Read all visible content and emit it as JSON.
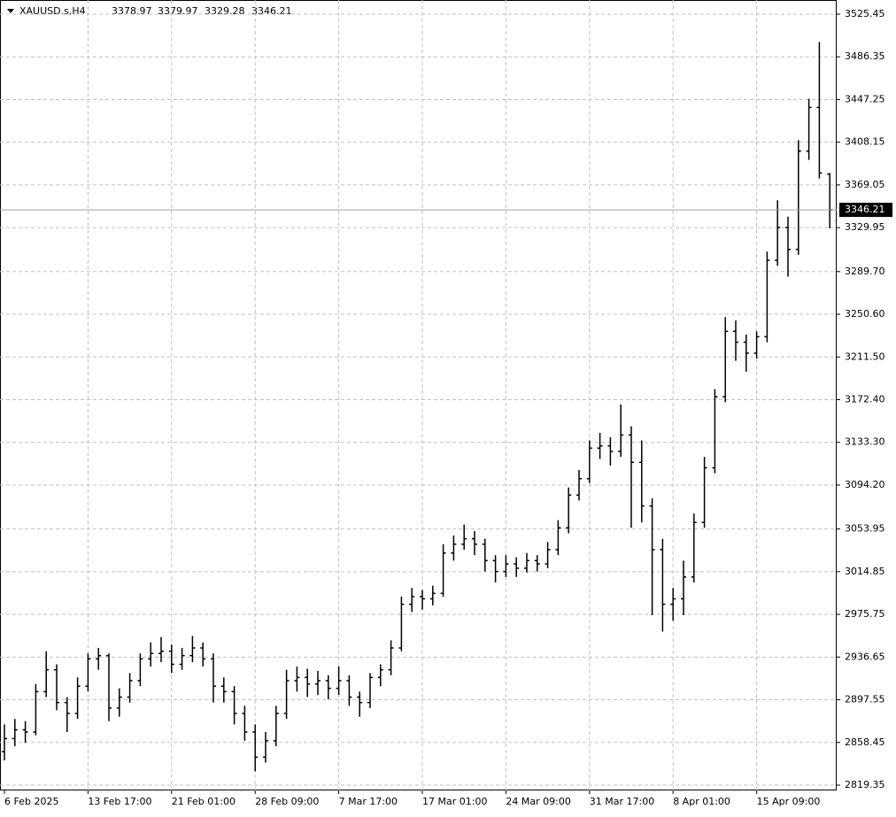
{
  "chart_data": {
    "type": "ohlc",
    "symbol": "XAUUSD.s,H4",
    "color": "#000000",
    "grid": true,
    "categories": [
      "6 Feb 2025",
      null,
      null,
      null,
      null,
      null,
      null,
      null,
      "13 Feb 17:00",
      null,
      null,
      null,
      null,
      null,
      null,
      null,
      "21 Feb 01:00",
      null,
      null,
      null,
      null,
      null,
      null,
      null,
      "28 Feb 09:00",
      null,
      null,
      null,
      null,
      null,
      null,
      null,
      "7 Mar 17:00",
      null,
      null,
      null,
      null,
      null,
      null,
      null,
      "17 Mar 01:00",
      null,
      null,
      null,
      null,
      null,
      null,
      null,
      "24 Mar 09:00",
      null,
      null,
      null,
      null,
      null,
      null,
      null,
      "31 Mar 17:00",
      null,
      null,
      null,
      null,
      null,
      null,
      null,
      "8 Apr 01:00",
      null,
      null,
      null,
      null,
      null,
      null,
      null,
      "15 Apr 09:00",
      null,
      null,
      null,
      null,
      null,
      null,
      null
    ],
    "open": [
      2850,
      2862,
      2870,
      2868,
      2905,
      2925,
      2895,
      2885,
      2910,
      2935,
      2938,
      2890,
      2900,
      2915,
      2935,
      2940,
      2942,
      2930,
      2938,
      2945,
      2935,
      2910,
      2905,
      2885,
      2868,
      2845,
      2860,
      2885,
      2915,
      2918,
      2912,
      2915,
      2908,
      2915,
      2900,
      2895,
      2918,
      2925,
      2945,
      2985,
      2992,
      2990,
      2995,
      3032,
      3040,
      3045,
      3040,
      3025,
      3015,
      3022,
      3018,
      3025,
      3022,
      3035,
      3055,
      3085,
      3100,
      3128,
      3130,
      3125,
      3140,
      3115,
      3075,
      3035,
      2985,
      2990,
      3010,
      3060,
      3110,
      3175,
      3235,
      3225,
      3215,
      3230,
      3300,
      3330,
      3310,
      3400,
      3440,
      3378.97
    ],
    "high": [
      2875,
      2880,
      2878,
      2912,
      2942,
      2930,
      2900,
      2918,
      2940,
      2945,
      2940,
      2908,
      2922,
      2940,
      2950,
      2955,
      2948,
      2945,
      2956,
      2950,
      2940,
      2918,
      2910,
      2892,
      2875,
      2868,
      2892,
      2925,
      2928,
      2926,
      2924,
      2920,
      2928,
      2920,
      2905,
      2922,
      2930,
      2952,
      2992,
      3000,
      2998,
      3002,
      3040,
      3048,
      3058,
      3052,
      3045,
      3030,
      3030,
      3028,
      3032,
      3030,
      3042,
      3062,
      3092,
      3108,
      3135,
      3142,
      3138,
      3168,
      3148,
      3135,
      3082,
      3045,
      3000,
      3025,
      3068,
      3120,
      3182,
      3248,
      3245,
      3232,
      3235,
      3308,
      3355,
      3340,
      3410,
      3448,
      3500,
      3379.97
    ],
    "low": [
      2842,
      2855,
      2858,
      2865,
      2900,
      2888,
      2868,
      2880,
      2905,
      2925,
      2878,
      2882,
      2895,
      2910,
      2928,
      2932,
      2922,
      2925,
      2932,
      2928,
      2895,
      2895,
      2875,
      2860,
      2832,
      2840,
      2855,
      2880,
      2905,
      2900,
      2902,
      2898,
      2902,
      2892,
      2882,
      2890,
      2910,
      2920,
      2942,
      2978,
      2980,
      2984,
      2992,
      3025,
      3035,
      3030,
      3015,
      3005,
      3010,
      3010,
      3014,
      3015,
      3018,
      3030,
      3050,
      3080,
      3096,
      3118,
      3112,
      3120,
      3055,
      3060,
      2975,
      2960,
      2970,
      2975,
      3005,
      3055,
      3105,
      3170,
      3208,
      3198,
      3210,
      3225,
      3295,
      3285,
      3305,
      3392,
      3375,
      3329.28
    ],
    "close": [
      2862,
      2870,
      2868,
      2905,
      2925,
      2895,
      2885,
      2910,
      2935,
      2938,
      2890,
      2900,
      2915,
      2935,
      2940,
      2942,
      2930,
      2938,
      2945,
      2935,
      2910,
      2905,
      2885,
      2868,
      2845,
      2860,
      2885,
      2915,
      2918,
      2912,
      2915,
      2908,
      2915,
      2900,
      2895,
      2918,
      2925,
      2945,
      2985,
      2992,
      2990,
      2995,
      3032,
      3040,
      3045,
      3040,
      3025,
      3015,
      3022,
      3018,
      3025,
      3022,
      3035,
      3055,
      3085,
      3100,
      3128,
      3130,
      3125,
      3140,
      3115,
      3075,
      3035,
      2985,
      2990,
      3010,
      3060,
      3110,
      3175,
      3235,
      3225,
      3215,
      3230,
      3300,
      3330,
      3310,
      3400,
      3440,
      3380,
      3346.21
    ],
    "ylim": [
      2814.5,
      3538.4
    ],
    "yticks": [
      2819.35,
      2858.45,
      2897.55,
      2936.65,
      2975.75,
      3014.85,
      3053.95,
      {
        "value": 3094.2,
        "label": "3094.20"
      },
      {
        "value": 3133.3,
        "label": "3133.30"
      },
      {
        "value": 3172.4,
        "label": "3172.40"
      },
      {
        "value": 3211.5,
        "label": "3211.50"
      },
      {
        "value": 3250.6,
        "label": "3250.60"
      },
      {
        "value": 3289.7,
        "label": "3289.70"
      },
      3329.95,
      3369.05,
      3408.15,
      3447.25,
      3486.35,
      3525.45
    ]
  }
}
